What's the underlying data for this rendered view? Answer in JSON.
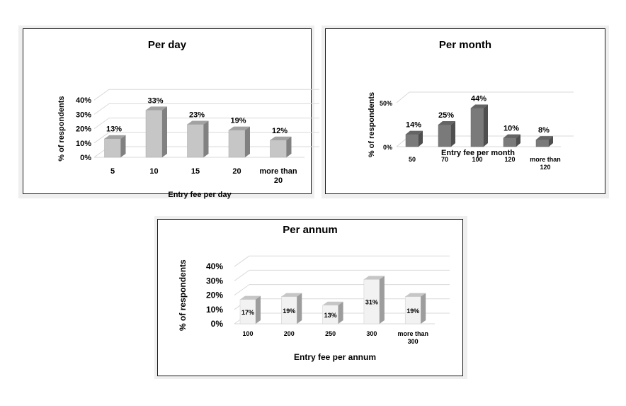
{
  "charts": [
    {
      "type": "bar",
      "title": "Per day",
      "xlabel": "Entry fee per day",
      "ylabel": "% of respondents",
      "categories": [
        "5",
        "10",
        "15",
        "20",
        "more than 20"
      ],
      "values": [
        13,
        33,
        23,
        19,
        12
      ],
      "value_labels": [
        "13%",
        "33%",
        "23%",
        "19%",
        "12%"
      ],
      "yticks": [
        "0%",
        "10%",
        "20%",
        "30%",
        "40%"
      ],
      "ylim": [
        0,
        40
      ],
      "bar_color": "#c6c6c6",
      "labels_inside": false
    },
    {
      "type": "bar",
      "title": "Per month",
      "xlabel": "Entry fee per month",
      "ylabel": "% of respondents",
      "categories": [
        "50",
        "70",
        "100",
        "120",
        "more than 120"
      ],
      "values": [
        14,
        25,
        44,
        10,
        8
      ],
      "value_labels": [
        "14%",
        "25%",
        "44%",
        "10%",
        "8%"
      ],
      "yticks": [
        "0%",
        "50%"
      ],
      "ylim": [
        0,
        50
      ],
      "bar_color": "#7a7a7a",
      "labels_inside": false
    },
    {
      "type": "bar",
      "title": "Per annum",
      "xlabel": "Entry fee per annum",
      "ylabel": "% of respondents",
      "categories": [
        "100",
        "200",
        "250",
        "300",
        "more than 300"
      ],
      "values": [
        17,
        19,
        13,
        31,
        19
      ],
      "value_labels": [
        "17%",
        "19%",
        "13%",
        "31%",
        "19%"
      ],
      "yticks": [
        "0%",
        "10%",
        "20%",
        "30%",
        "40%"
      ],
      "ylim": [
        0,
        40
      ],
      "bar_color": "#f2f2f2",
      "labels_inside": true
    }
  ]
}
